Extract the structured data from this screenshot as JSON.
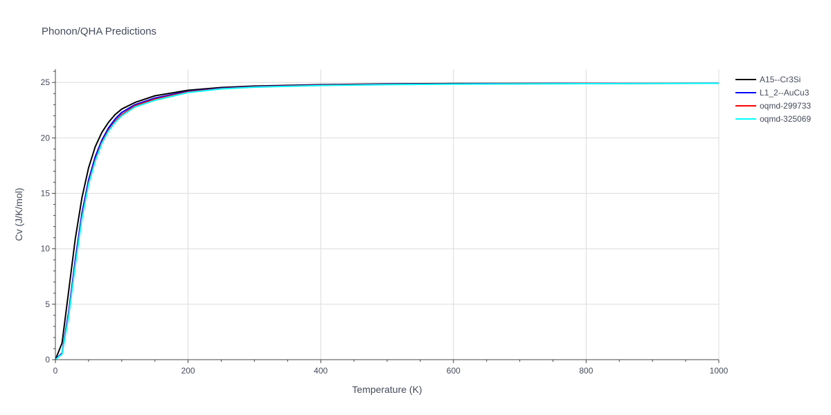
{
  "chart_data": {
    "type": "line",
    "title": "Phonon/QHA Predictions",
    "xlabel": "Temperature (K)",
    "ylabel": "Cv (J/K/mol)",
    "xlim": [
      0,
      1000
    ],
    "ylim": [
      0,
      26.2
    ],
    "x_ticks": [
      0,
      200,
      400,
      600,
      800,
      1000
    ],
    "y_ticks": [
      0,
      5,
      10,
      15,
      20,
      25
    ],
    "x_tick_labels": [
      "0",
      "200",
      "400",
      "600",
      "800",
      "1000"
    ],
    "y_tick_labels": [
      "0",
      "5",
      "10",
      "15",
      "20",
      "25"
    ],
    "grid": true,
    "legend_position": "top-right",
    "series": [
      {
        "name": "A15--Cr3Si",
        "color": "#000000",
        "x": [
          0,
          10,
          20,
          30,
          40,
          50,
          60,
          70,
          80,
          90,
          100,
          120,
          150,
          200,
          250,
          300,
          400,
          500,
          600,
          800,
          1000
        ],
        "y": [
          0,
          1.5,
          6.2,
          10.9,
          14.6,
          17.3,
          19.2,
          20.5,
          21.4,
          22.1,
          22.6,
          23.2,
          23.8,
          24.3,
          24.55,
          24.68,
          24.8,
          24.87,
          24.9,
          24.92,
          24.93
        ]
      },
      {
        "name": "L1_2--AuCu3",
        "color": "#0000ff",
        "x": [
          0,
          10,
          20,
          30,
          40,
          50,
          60,
          70,
          80,
          90,
          100,
          120,
          150,
          200,
          250,
          300,
          400,
          500,
          600,
          800,
          1000
        ],
        "y": [
          0,
          0.6,
          4.3,
          9.0,
          13.2,
          16.2,
          18.3,
          19.8,
          20.9,
          21.7,
          22.3,
          23.0,
          23.6,
          24.2,
          24.48,
          24.63,
          24.77,
          24.84,
          24.88,
          24.91,
          24.93
        ]
      },
      {
        "name": "oqmd-299733",
        "color": "#ff0000",
        "x": [
          0,
          10,
          20,
          30,
          40,
          50,
          60,
          70,
          80,
          90,
          100,
          120,
          150,
          200,
          250,
          300,
          400,
          500,
          600,
          800,
          1000
        ],
        "y": [
          0,
          0.5,
          4.0,
          8.6,
          12.8,
          15.9,
          18.0,
          19.6,
          20.7,
          21.5,
          22.1,
          22.9,
          23.5,
          24.15,
          24.45,
          24.6,
          24.75,
          24.82,
          24.86,
          24.9,
          24.92
        ]
      },
      {
        "name": "oqmd-325069",
        "color": "#00ffff",
        "x": [
          0,
          10,
          20,
          30,
          40,
          50,
          60,
          70,
          80,
          90,
          100,
          120,
          150,
          200,
          250,
          300,
          400,
          500,
          600,
          800,
          1000
        ],
        "y": [
          0,
          0.5,
          3.9,
          8.5,
          12.7,
          15.8,
          17.9,
          19.5,
          20.6,
          21.4,
          22.0,
          22.8,
          23.4,
          24.1,
          24.42,
          24.58,
          24.73,
          24.8,
          24.85,
          24.89,
          24.92
        ]
      }
    ]
  }
}
